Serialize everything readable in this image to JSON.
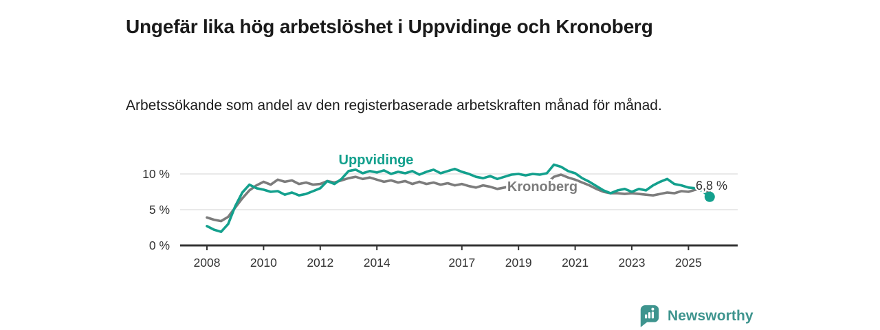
{
  "header": {
    "title": "Ungefär lika hög arbetslöshet i Uppvidinge och Kronoberg",
    "subtitle": "Arbetssökande som andel av den registerbaserade arbetskraften månad för månad."
  },
  "chart_data": {
    "type": "line",
    "title": "Ungefär lika hög arbetslöshet i Uppvidinge och Kronoberg",
    "subtitle": "Arbetssökande som andel av den registerbaserade arbetskraften månad för månad.",
    "unit": "%",
    "grid": true,
    "legend": "inline-labels",
    "xlim": [
      2007.8,
      2027.5
    ],
    "ylim": [
      0,
      12
    ],
    "y_ticks": [
      {
        "value": 0,
        "label": "0 %"
      },
      {
        "value": 5,
        "label": "5 %"
      },
      {
        "value": 10,
        "label": "10 %"
      }
    ],
    "x_ticks": [
      {
        "value": 2008,
        "label": "2008"
      },
      {
        "value": 2010,
        "label": "2010"
      },
      {
        "value": 2012,
        "label": "2012"
      },
      {
        "value": 2014,
        "label": "2014"
      },
      {
        "value": 2017,
        "label": "2017"
      },
      {
        "value": 2019,
        "label": "2019"
      },
      {
        "value": 2021,
        "label": "2021"
      },
      {
        "value": 2023,
        "label": "2023"
      },
      {
        "value": 2025,
        "label": "2025"
      }
    ],
    "x": [
      2008.0,
      2008.25,
      2008.5,
      2008.75,
      2009.0,
      2009.25,
      2009.5,
      2009.75,
      2010.0,
      2010.25,
      2010.5,
      2010.75,
      2011.0,
      2011.25,
      2011.5,
      2011.75,
      2012.0,
      2012.25,
      2012.5,
      2012.75,
      2013.0,
      2013.25,
      2013.5,
      2013.75,
      2014.0,
      2014.25,
      2014.5,
      2014.75,
      2015.0,
      2015.25,
      2015.5,
      2015.75,
      2016.0,
      2016.25,
      2016.5,
      2016.75,
      2017.0,
      2017.25,
      2017.5,
      2017.75,
      2018.0,
      2018.25,
      2018.5,
      2018.75,
      2019.0,
      2019.25,
      2019.5,
      2019.75,
      2020.0,
      2020.25,
      2020.5,
      2020.75,
      2021.0,
      2021.25,
      2021.5,
      2021.75,
      2022.0,
      2022.25,
      2022.5,
      2022.75,
      2023.0,
      2023.25,
      2023.5,
      2023.75,
      2024.0,
      2024.25,
      2024.5,
      2024.75,
      2025.0,
      2025.25,
      2025.5,
      2025.75
    ],
    "series": [
      {
        "name": "Uppvidinge",
        "color": "#13a08d",
        "values": [
          2.7,
          2.2,
          1.9,
          3.0,
          5.5,
          7.4,
          8.5,
          8.0,
          7.8,
          7.5,
          7.6,
          7.1,
          7.4,
          7.0,
          7.2,
          7.6,
          8.0,
          9.0,
          8.6,
          9.3,
          10.4,
          10.6,
          10.1,
          10.4,
          10.2,
          10.5,
          10.0,
          10.3,
          10.1,
          10.4,
          9.9,
          10.3,
          10.6,
          10.1,
          10.4,
          10.7,
          10.3,
          10.0,
          9.6,
          9.4,
          9.7,
          9.3,
          9.6,
          9.9,
          10.0,
          9.8,
          10.0,
          9.9,
          10.1,
          11.3,
          11.0,
          10.4,
          10.1,
          9.4,
          8.9,
          8.3,
          7.7,
          7.3,
          7.7,
          7.9,
          7.5,
          7.9,
          7.7,
          8.4,
          8.9,
          9.3,
          8.6,
          8.4,
          8.1,
          8.0,
          7.6,
          6.8
        ]
      },
      {
        "name": "Kronoberg",
        "color": "#7c7c7c",
        "values": [
          3.9,
          3.6,
          3.4,
          4.0,
          5.3,
          6.6,
          7.7,
          8.4,
          8.9,
          8.5,
          9.2,
          8.9,
          9.1,
          8.6,
          8.8,
          8.5,
          8.6,
          9.0,
          8.8,
          9.1,
          9.4,
          9.6,
          9.3,
          9.5,
          9.2,
          8.9,
          9.1,
          8.8,
          9.0,
          8.6,
          8.9,
          8.6,
          8.8,
          8.5,
          8.7,
          8.4,
          8.6,
          8.3,
          8.1,
          8.4,
          8.2,
          7.9,
          8.1,
          8.3,
          8.2,
          8.4,
          8.3,
          8.5,
          8.7,
          9.6,
          9.9,
          9.5,
          9.2,
          8.8,
          8.4,
          7.9,
          7.5,
          7.3,
          7.3,
          7.2,
          7.3,
          7.2,
          7.1,
          7.0,
          7.2,
          7.4,
          7.3,
          7.6,
          7.5,
          7.8,
          7.7,
          7.5
        ]
      }
    ],
    "annotations": [
      {
        "label": "6,8 %",
        "series": "Uppvidinge",
        "x": 2025.75,
        "value": 6.8,
        "marker": "dot"
      }
    ]
  },
  "colors": {
    "uppvidinge": "#13a08d",
    "kronoberg": "#7c7c7c",
    "axis": "#333333",
    "grid": "#dcdcdc",
    "annotation_text": "#333333",
    "brand": "#3e948e"
  },
  "footer": {
    "brand": "Newsworthy",
    "logo_icon": "bar-chart-speech-bubble-icon"
  }
}
